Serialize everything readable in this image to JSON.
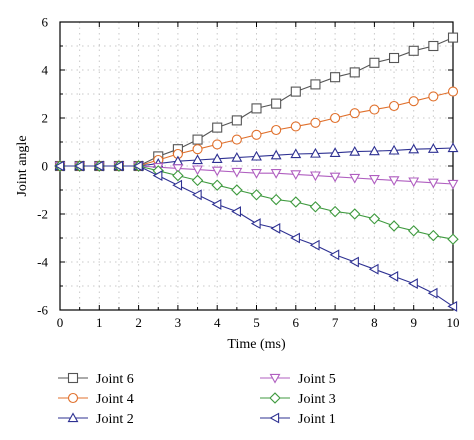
{
  "chart_data": {
    "type": "line",
    "xlabel": "Time (ms)",
    "ylabel": "Joint angle",
    "xlim": [
      0,
      10
    ],
    "ylim": [
      -6,
      6
    ],
    "x_ticks": [
      "0",
      "1",
      "2",
      "3",
      "4",
      "5",
      "6",
      "7",
      "8",
      "9",
      "10"
    ],
    "y_ticks": [
      "6",
      "4",
      "2",
      "0",
      "-2",
      "-4",
      "-6"
    ],
    "grid": "dotted",
    "legend_position": "bottom",
    "x": [
      0,
      0.5,
      1,
      1.5,
      2,
      2.5,
      3,
      3.5,
      4,
      4.5,
      5,
      5.5,
      6,
      6.5,
      7,
      7.5,
      8,
      8.5,
      9,
      9.5,
      10
    ],
    "series": [
      {
        "name": "Joint 6",
        "marker": "square",
        "color": "#555555",
        "values": [
          0,
          0,
          0,
          0,
          0,
          0.4,
          0.7,
          1.1,
          1.6,
          1.9,
          2.4,
          2.6,
          3.1,
          3.4,
          3.7,
          3.9,
          4.3,
          4.5,
          4.8,
          5.0,
          5.35
        ]
      },
      {
        "name": "Joint 4",
        "marker": "circle",
        "color": "#e0702c",
        "values": [
          0,
          0,
          0,
          0,
          0,
          0.25,
          0.5,
          0.7,
          0.9,
          1.1,
          1.3,
          1.5,
          1.65,
          1.8,
          2.0,
          2.2,
          2.35,
          2.5,
          2.7,
          2.9,
          3.1
        ]
      },
      {
        "name": "Joint 2",
        "marker": "triangle-up",
        "color": "#2e3192",
        "values": [
          0,
          0,
          0,
          0,
          0,
          0.1,
          0.2,
          0.25,
          0.3,
          0.35,
          0.4,
          0.45,
          0.5,
          0.52,
          0.55,
          0.6,
          0.62,
          0.65,
          0.7,
          0.72,
          0.75
        ]
      },
      {
        "name": "Joint 5",
        "marker": "triangle-down",
        "color": "#b05fc0",
        "values": [
          0,
          0,
          0,
          0,
          0,
          -0.05,
          -0.1,
          -0.15,
          -0.2,
          -0.25,
          -0.3,
          -0.3,
          -0.35,
          -0.4,
          -0.45,
          -0.5,
          -0.55,
          -0.6,
          -0.65,
          -0.7,
          -0.75
        ]
      },
      {
        "name": "Joint 3",
        "marker": "diamond",
        "color": "#3f9a3f",
        "values": [
          0,
          0,
          0,
          0,
          0,
          -0.2,
          -0.4,
          -0.6,
          -0.8,
          -1.0,
          -1.2,
          -1.4,
          -1.5,
          -1.7,
          -1.9,
          -2.0,
          -2.2,
          -2.5,
          -2.7,
          -2.9,
          -3.05
        ]
      },
      {
        "name": "Joint 1",
        "marker": "triangle-left",
        "color": "#2e3192",
        "values": [
          0,
          0,
          0,
          0,
          0,
          -0.4,
          -0.8,
          -1.2,
          -1.6,
          -1.9,
          -2.4,
          -2.6,
          -3.0,
          -3.3,
          -3.7,
          -4.0,
          -4.3,
          -4.6,
          -4.9,
          -5.3,
          -5.85
        ]
      }
    ]
  }
}
